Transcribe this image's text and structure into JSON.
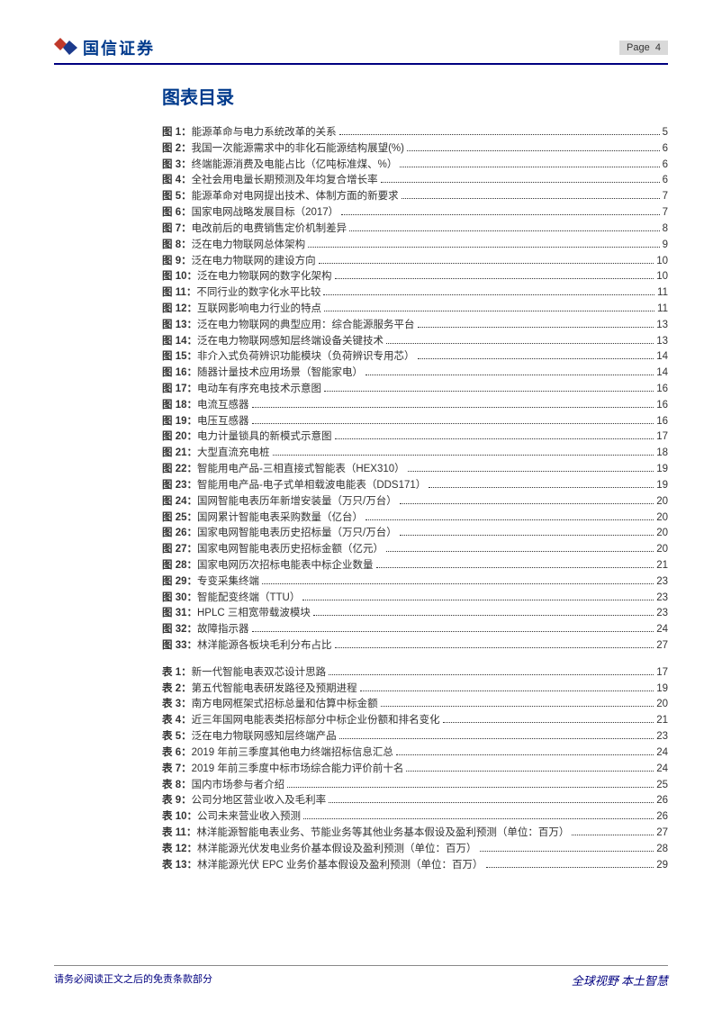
{
  "header": {
    "logo_text": "国信证券",
    "page_prefix": "Page",
    "page_num": "4"
  },
  "title": "图表目录",
  "figures": [
    {
      "label": "图 1：",
      "desc": "能源革命与电力系统改革的关系",
      "page": "5"
    },
    {
      "label": "图 2：",
      "desc": "我国一次能源需求中的非化石能源结构展望(%)",
      "page": "6"
    },
    {
      "label": "图 3：",
      "desc": "终端能源消费及电能占比（亿吨标准煤、%）",
      "page": "6"
    },
    {
      "label": "图 4：",
      "desc": "全社会用电量长期预测及年均复合增长率",
      "page": "6"
    },
    {
      "label": "图 5：",
      "desc": "能源革命对电网提出技术、体制方面的新要求",
      "page": "7"
    },
    {
      "label": "图 6：",
      "desc": "国家电网战略发展目标（2017）",
      "page": "7"
    },
    {
      "label": "图 7：",
      "desc": "电改前后的电费销售定价机制差异",
      "page": "8"
    },
    {
      "label": "图 8：",
      "desc": "泛在电力物联网总体架构",
      "page": "9"
    },
    {
      "label": "图 9：",
      "desc": "泛在电力物联网的建设方向",
      "page": "10"
    },
    {
      "label": "图 10：",
      "desc": "泛在电力物联网的数字化架构",
      "page": "10"
    },
    {
      "label": "图 11：",
      "desc": "不同行业的数字化水平比较",
      "page": "11"
    },
    {
      "label": "图 12：",
      "desc": "互联网影响电力行业的特点",
      "page": "11"
    },
    {
      "label": "图 13：",
      "desc": "泛在电力物联网的典型应用：综合能源服务平台",
      "page": "13"
    },
    {
      "label": "图 14：",
      "desc": "泛在电力物联网感知层终端设备关键技术",
      "page": "13"
    },
    {
      "label": "图 15：",
      "desc": "非介入式负荷辨识功能模块（负荷辨识专用芯）",
      "page": "14"
    },
    {
      "label": "图 16：",
      "desc": "随器计量技术应用场景（智能家电）",
      "page": "14"
    },
    {
      "label": "图 17：",
      "desc": "电动车有序充电技术示意图",
      "page": "16"
    },
    {
      "label": "图 18：",
      "desc": "电流互感器",
      "page": "16"
    },
    {
      "label": "图 19：",
      "desc": "电压互感器",
      "page": "16"
    },
    {
      "label": "图 20：",
      "desc": "电力计量锁具的新模式示意图",
      "page": "17"
    },
    {
      "label": "图 21：",
      "desc": "大型直流充电桩",
      "page": "18"
    },
    {
      "label": "图 22：",
      "desc": "智能用电产品-三相直接式智能表（HEX310）",
      "page": "19"
    },
    {
      "label": "图 23：",
      "desc": "智能用电产品-电子式单相载波电能表（DDS171）",
      "page": "19"
    },
    {
      "label": "图 24：",
      "desc": "国网智能电表历年新增安装量（万只/万台）",
      "page": "20"
    },
    {
      "label": "图 25：",
      "desc": "国网累计智能电表采购数量（亿台）",
      "page": "20"
    },
    {
      "label": "图 26：",
      "desc": "国家电网智能电表历史招标量（万只/万台）",
      "page": "20"
    },
    {
      "label": "图 27：",
      "desc": "国家电网智能电表历史招标金额（亿元）",
      "page": "20"
    },
    {
      "label": "图 28：",
      "desc": "国家电网历次招标电能表中标企业数量",
      "page": "21"
    },
    {
      "label": "图 29：",
      "desc": "专变采集终端",
      "page": "23"
    },
    {
      "label": "图 30：",
      "desc": "智能配变终端（TTU）",
      "page": "23"
    },
    {
      "label": "图 31：",
      "desc": "HPLC 三相宽带载波模块",
      "page": "23"
    },
    {
      "label": "图 32：",
      "desc": "故障指示器",
      "page": "24"
    },
    {
      "label": "图 33：",
      "desc": "林洋能源各板块毛利分布占比",
      "page": "27"
    }
  ],
  "tables": [
    {
      "label": "表 1：",
      "desc": "新一代智能电表双芯设计思路",
      "page": "17"
    },
    {
      "label": "表 2：",
      "desc": "第五代智能电表研发路径及预期进程",
      "page": "19"
    },
    {
      "label": "表 3：",
      "desc": "南方电网框架式招标总量和估算中标金额",
      "page": "20"
    },
    {
      "label": "表 4：",
      "desc": "近三年国网电能表类招标部分中标企业份额和排名变化",
      "page": "21"
    },
    {
      "label": "表 5：",
      "desc": "泛在电力物联网感知层终端产品",
      "page": "23"
    },
    {
      "label": "表 6：",
      "desc": "2019 年前三季度其他电力终端招标信息汇总",
      "page": "24"
    },
    {
      "label": "表 7：",
      "desc": "2019 年前三季度中标市场综合能力评价前十名",
      "page": "24"
    },
    {
      "label": "表 8：",
      "desc": "国内市场参与者介绍",
      "page": "25"
    },
    {
      "label": "表 9：",
      "desc": "公司分地区营业收入及毛利率",
      "page": "26"
    },
    {
      "label": "表 10：",
      "desc": "公司未来营业收入预测",
      "page": "26"
    },
    {
      "label": "表 11：",
      "desc": "林洋能源智能电表业务、节能业务等其他业务基本假设及盈利预测（单位：百万）",
      "page": "27"
    },
    {
      "label": "表 12：",
      "desc": "林洋能源光伏发电业务价基本假设及盈利预测（单位：百万）",
      "page": "28"
    },
    {
      "label": "表 13：",
      "desc": "林洋能源光伏 EPC 业务价基本假设及盈利预测（单位：百万）",
      "page": "29"
    }
  ],
  "footer": {
    "left": "请务必阅读正文之后的免责条款部分",
    "right": "全球视野  本土智慧"
  },
  "colors": {
    "brand_blue": "#003a8c",
    "rule_blue": "#000080",
    "page_bg": "#d9d9d9",
    "logo_red": "#c0392b",
    "logo_blue": "#1b3a8c"
  }
}
